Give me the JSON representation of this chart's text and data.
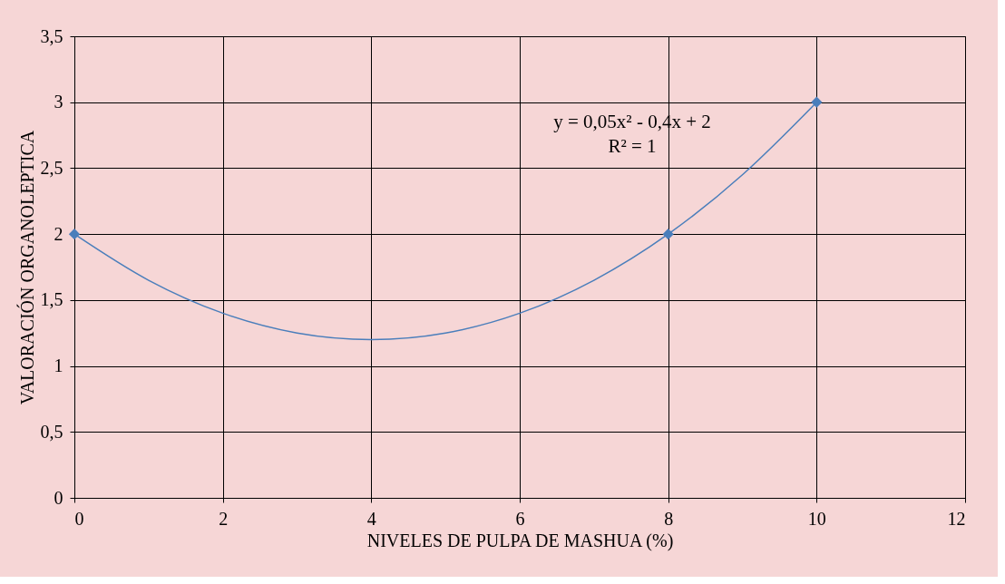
{
  "chart_data": {
    "type": "scatter",
    "xlabel": "NIVELES DE PULPA DE MASHUA (%)",
    "ylabel": "VALORACIÓN ORGANOLEPTICA",
    "annotations": [
      "y = 0,05x² - 0,4x + 2",
      "R² = 1"
    ],
    "series": [
      {
        "color": "#4a7ebb",
        "marker": "diamond",
        "x": [
          0,
          8,
          10
        ],
        "values": [
          2,
          2,
          3
        ]
      },
      {
        "type": "line",
        "color": "#4a7ebb",
        "marker": "none",
        "line_style": "solid",
        "x": [
          0,
          1,
          2,
          3,
          4,
          5,
          6,
          7,
          8,
          9,
          10
        ],
        "values": [
          2,
          1.65,
          1.4,
          1.25,
          1.2,
          1.25,
          1.4,
          1.65,
          2,
          2.45,
          3
        ]
      }
    ],
    "xlim": [
      0,
      12
    ],
    "xticks": [
      0,
      2,
      4,
      6,
      8,
      10,
      12
    ],
    "ylim": [
      0,
      3.5
    ],
    "yticks": [
      0,
      {
        "value": 0.5,
        "label": "0,5"
      },
      1,
      {
        "value": 1.5,
        "label": "1,5"
      },
      2,
      {
        "value": 2.5,
        "label": "2,5"
      },
      3,
      {
        "value": 3.5,
        "label": "3,5"
      }
    ],
    "grid": true
  }
}
